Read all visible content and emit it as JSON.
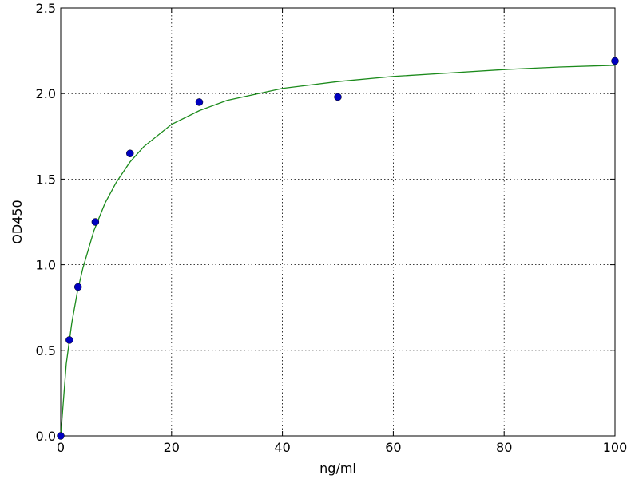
{
  "chart_data": {
    "type": "scatter",
    "xlabel": "ng/ml",
    "ylabel": "OD450",
    "xlim": [
      0,
      100
    ],
    "ylim": [
      0,
      2.5
    ],
    "xticks": [
      0,
      20,
      40,
      60,
      80,
      100
    ],
    "yticks": [
      {
        "value": 0,
        "label": "0.0"
      },
      0.5,
      {
        "value": 1,
        "label": "1.0"
      },
      1.5,
      {
        "value": 2,
        "label": "2.0"
      },
      2.5
    ],
    "grid": true,
    "series": [
      {
        "kind": "points",
        "color": "#0000c0",
        "x": [
          0,
          1.5625,
          3.125,
          6.25,
          12.5,
          25,
          50,
          100
        ],
        "values": [
          0,
          0.56,
          0.87,
          1.25,
          1.65,
          1.95,
          1.98,
          2.19
        ]
      },
      {
        "kind": "line",
        "color": "#1b8a1b",
        "x": [
          0,
          1,
          2,
          3,
          4,
          6,
          8,
          10,
          12.5,
          15,
          20,
          25,
          30,
          40,
          50,
          60,
          70,
          80,
          90,
          100
        ],
        "values": [
          0,
          0.42,
          0.66,
          0.84,
          0.98,
          1.2,
          1.36,
          1.48,
          1.6,
          1.69,
          1.82,
          1.9,
          1.96,
          2.03,
          2.07,
          2.1,
          2.12,
          2.14,
          2.155,
          2.165
        ]
      }
    ]
  }
}
